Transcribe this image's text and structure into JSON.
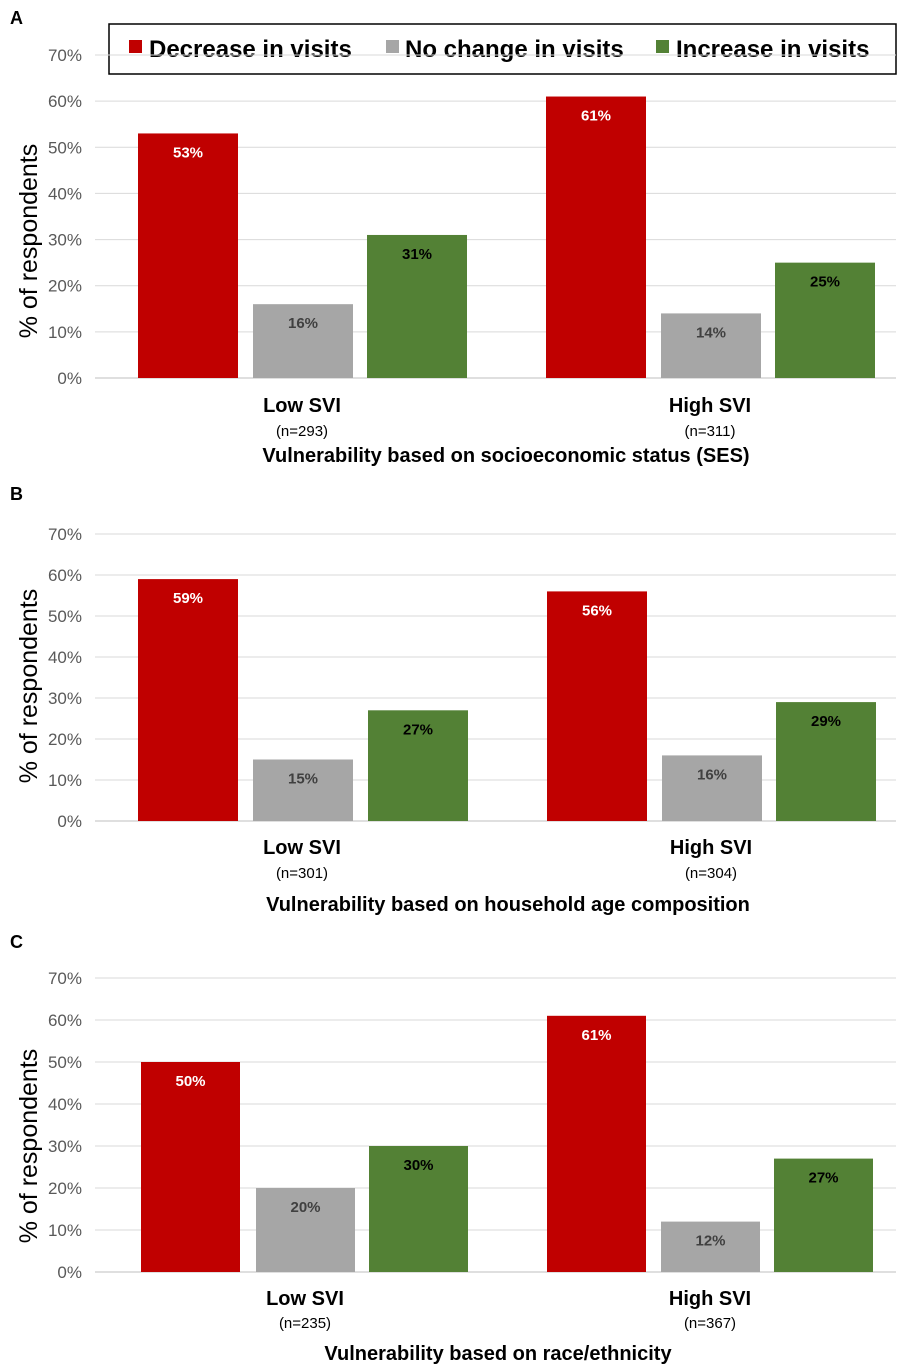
{
  "legend": {
    "items": [
      {
        "label": "Decrease in visits",
        "color": "#c00000"
      },
      {
        "label": "No change in visits",
        "color": "#a6a6a6"
      },
      {
        "label": "Increase in visits",
        "color": "#538135"
      }
    ]
  },
  "chart_data": [
    {
      "type": "bar",
      "panel": "A",
      "ylabel": "% of respondents",
      "xlabel": "Vulnerability based on socioeconomic status (SES)",
      "ylim": [
        0,
        70
      ],
      "yticks": [
        "0%",
        "10%",
        "20%",
        "30%",
        "40%",
        "50%",
        "60%",
        "70%"
      ],
      "grid": true,
      "categories": [
        "Low SVI",
        "High SVI"
      ],
      "category_n": [
        "(n=293)",
        "(n=311)"
      ],
      "series": [
        {
          "name": "Decrease in visits",
          "values": [
            53,
            61
          ],
          "labels": [
            "53%",
            "61%"
          ]
        },
        {
          "name": "No change in visits",
          "values": [
            16,
            14
          ],
          "labels": [
            "16%",
            "14%"
          ]
        },
        {
          "name": "Increase in visits",
          "values": [
            31,
            25
          ],
          "labels": [
            "31%",
            "25%"
          ]
        }
      ]
    },
    {
      "type": "bar",
      "panel": "B",
      "ylabel": "% of respondents",
      "xlabel": "Vulnerability based on household age composition",
      "ylim": [
        0,
        70
      ],
      "yticks": [
        "0%",
        "10%",
        "20%",
        "30%",
        "40%",
        "50%",
        "60%",
        "70%"
      ],
      "grid": true,
      "categories": [
        "Low SVI",
        "High SVI"
      ],
      "category_n": [
        "(n=301)",
        "(n=304)"
      ],
      "series": [
        {
          "name": "Decrease in visits",
          "values": [
            59,
            56
          ],
          "labels": [
            "59%",
            "56%"
          ]
        },
        {
          "name": "No change in visits",
          "values": [
            15,
            16
          ],
          "labels": [
            "15%",
            "16%"
          ]
        },
        {
          "name": "Increase in visits",
          "values": [
            27,
            29
          ],
          "labels": [
            "27%",
            "29%"
          ]
        }
      ]
    },
    {
      "type": "bar",
      "panel": "C",
      "ylabel": "% of respondents",
      "xlabel": "Vulnerability based on race/ethnicity",
      "ylim": [
        0,
        70
      ],
      "yticks": [
        "0%",
        "10%",
        "20%",
        "30%",
        "40%",
        "50%",
        "60%",
        "70%"
      ],
      "grid": true,
      "categories": [
        "Low SVI",
        "High SVI"
      ],
      "category_n": [
        "(n=235)",
        "(n=367)"
      ],
      "series": [
        {
          "name": "Decrease in visits",
          "values": [
            50,
            61
          ],
          "labels": [
            "50%",
            "61%"
          ]
        },
        {
          "name": "No change in visits",
          "values": [
            20,
            12
          ],
          "labels": [
            "20%",
            "12%"
          ]
        },
        {
          "name": "Increase in visits",
          "values": [
            30,
            27
          ],
          "labels": [
            "30%",
            "27%"
          ]
        }
      ]
    }
  ]
}
